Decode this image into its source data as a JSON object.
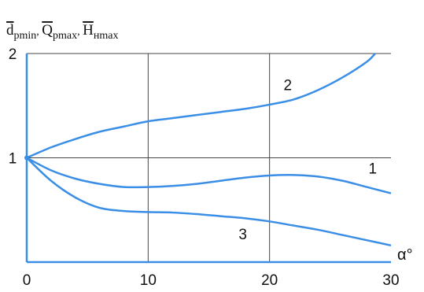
{
  "chart_data": {
    "type": "line",
    "ylabel_parts": [
      {
        "base": "d",
        "sub": "pmin"
      },
      {
        "base": "Q",
        "sub": "pmax"
      },
      {
        "base": "H",
        "sub": "нmax"
      }
    ],
    "ylabel_sep": ", ",
    "xlabel": "α°",
    "xlim": [
      0,
      30
    ],
    "ylim": [
      0,
      2
    ],
    "x_ticks": [
      {
        "value": 0,
        "label": "0"
      },
      {
        "value": 10,
        "label": "10"
      },
      {
        "value": 20,
        "label": "20"
      },
      {
        "value": 30,
        "label": "30"
      }
    ],
    "y_ticks": [
      {
        "value": 1,
        "label": "1"
      },
      {
        "value": 2,
        "label": "2"
      }
    ],
    "grid": true,
    "colors": {
      "curve": "#3a8ee6",
      "axis": "#3a8ee6",
      "grid": "#444444"
    },
    "series": [
      {
        "name": "1",
        "label_at": [
          28.5,
          0.85
        ],
        "points": [
          [
            0,
            1.0
          ],
          [
            2,
            0.88
          ],
          [
            4,
            0.8
          ],
          [
            6,
            0.75
          ],
          [
            8,
            0.72
          ],
          [
            10,
            0.72
          ],
          [
            12,
            0.73
          ],
          [
            14,
            0.75
          ],
          [
            16,
            0.78
          ],
          [
            18,
            0.81
          ],
          [
            20,
            0.83
          ],
          [
            22,
            0.835
          ],
          [
            24,
            0.82
          ],
          [
            26,
            0.78
          ],
          [
            28,
            0.72
          ],
          [
            30,
            0.66
          ]
        ]
      },
      {
        "name": "2",
        "label_at": [
          21.5,
          1.65
        ],
        "points": [
          [
            0,
            1.0
          ],
          [
            2,
            1.1
          ],
          [
            4,
            1.18
          ],
          [
            6,
            1.25
          ],
          [
            8,
            1.3
          ],
          [
            10,
            1.35
          ],
          [
            12,
            1.38
          ],
          [
            14,
            1.41
          ],
          [
            16,
            1.44
          ],
          [
            18,
            1.47
          ],
          [
            20,
            1.51
          ],
          [
            22,
            1.56
          ],
          [
            24,
            1.65
          ],
          [
            26,
            1.77
          ],
          [
            28,
            1.92
          ],
          [
            28.7,
            2.0
          ]
        ]
      },
      {
        "name": "3",
        "label_at": [
          17.8,
          0.22
        ],
        "points": [
          [
            0,
            1.0
          ],
          [
            2,
            0.78
          ],
          [
            4,
            0.62
          ],
          [
            6,
            0.52
          ],
          [
            8,
            0.49
          ],
          [
            10,
            0.48
          ],
          [
            12,
            0.475
          ],
          [
            14,
            0.46
          ],
          [
            16,
            0.44
          ],
          [
            18,
            0.42
          ],
          [
            20,
            0.39
          ],
          [
            22,
            0.35
          ],
          [
            24,
            0.31
          ],
          [
            26,
            0.26
          ],
          [
            28,
            0.21
          ],
          [
            30,
            0.16
          ]
        ]
      }
    ]
  }
}
